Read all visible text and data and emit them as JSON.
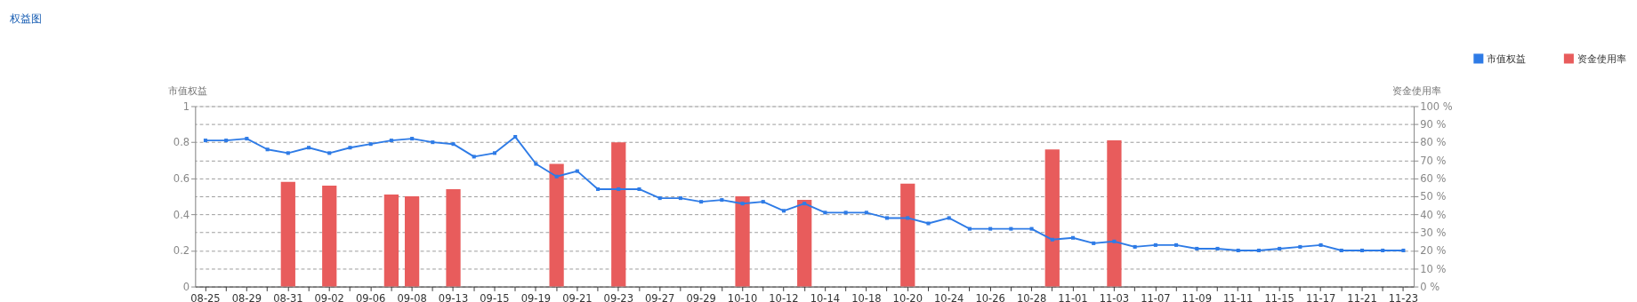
{
  "chart_data": {
    "type": "line",
    "title": "权益图",
    "ylabel": "市值权益",
    "y2label": "资金使用率",
    "categories": [
      "08-25",
      null,
      "08-29",
      null,
      "08-31",
      null,
      "09-02",
      null,
      "09-06",
      null,
      "09-08",
      null,
      "09-13",
      null,
      "09-15",
      null,
      "09-19",
      null,
      "09-21",
      null,
      "09-23",
      null,
      "09-27",
      null,
      "09-29",
      null,
      "10-10",
      null,
      "10-12",
      null,
      "10-14",
      null,
      "10-18",
      null,
      "10-20",
      null,
      "10-24",
      null,
      "10-26",
      null,
      "10-28",
      null,
      "11-01",
      null,
      "11-03",
      null,
      "11-07",
      null,
      "11-09",
      null,
      "11-11",
      null,
      "11-15",
      null,
      "11-17",
      null,
      "11-21",
      null,
      "11-23"
    ],
    "series": [
      {
        "name": "市值权益",
        "color": "#2e7be6",
        "marker": "square",
        "values": [
          0.81,
          0.81,
          0.82,
          0.76,
          0.74,
          0.77,
          0.74,
          0.77,
          0.79,
          0.81,
          0.82,
          0.8,
          0.79,
          0.72,
          0.74,
          0.83,
          0.68,
          0.61,
          0.64,
          0.54,
          0.54,
          0.54,
          0.49,
          0.49,
          0.47,
          0.48,
          0.46,
          0.47,
          0.42,
          0.46,
          0.41,
          0.41,
          0.41,
          0.38,
          0.38,
          0.35,
          0.38,
          0.32,
          0.32,
          0.32,
          0.32,
          0.26,
          0.27,
          0.24,
          0.25,
          0.22,
          0.23,
          0.23,
          0.21,
          0.21,
          0.2,
          0.2,
          0.21,
          0.22,
          0.23,
          0.2,
          0.2,
          0.2,
          0.2
        ]
      },
      {
        "name": "资金使用率",
        "type": "bar",
        "axis": "y2",
        "color": "#e85c5c",
        "values": [
          null,
          null,
          null,
          null,
          58,
          null,
          56,
          null,
          null,
          51,
          50,
          null,
          54,
          null,
          null,
          null,
          null,
          68,
          null,
          null,
          80,
          null,
          null,
          null,
          null,
          null,
          50,
          null,
          null,
          48,
          null,
          null,
          null,
          null,
          57,
          null,
          null,
          null,
          null,
          null,
          null,
          76,
          null,
          null,
          81,
          null,
          null,
          null,
          null,
          null,
          null,
          null,
          null,
          null,
          null,
          null,
          null,
          null,
          null
        ]
      }
    ],
    "ylim": [
      0,
      1
    ],
    "yticks": [
      0,
      0.2,
      0.4,
      0.6,
      0.8,
      1
    ],
    "y2lim": [
      0,
      100
    ],
    "y2ticks": [
      {
        "value": 0,
        "label": "0 %"
      },
      {
        "value": 10,
        "label": "10 %"
      },
      {
        "value": 20,
        "label": "20 %"
      },
      {
        "value": 30,
        "label": "30 %"
      },
      {
        "value": 40,
        "label": "40 %"
      },
      {
        "value": 50,
        "label": "50 %"
      },
      {
        "value": 60,
        "label": "60 %"
      },
      {
        "value": 70,
        "label": "70 %"
      },
      {
        "value": 80,
        "label": "80 %"
      },
      {
        "value": 90,
        "label": "90 %"
      },
      {
        "value": 100,
        "label": "100 %"
      }
    ],
    "grid": true,
    "legend": "top right",
    "line_style": "solid"
  }
}
